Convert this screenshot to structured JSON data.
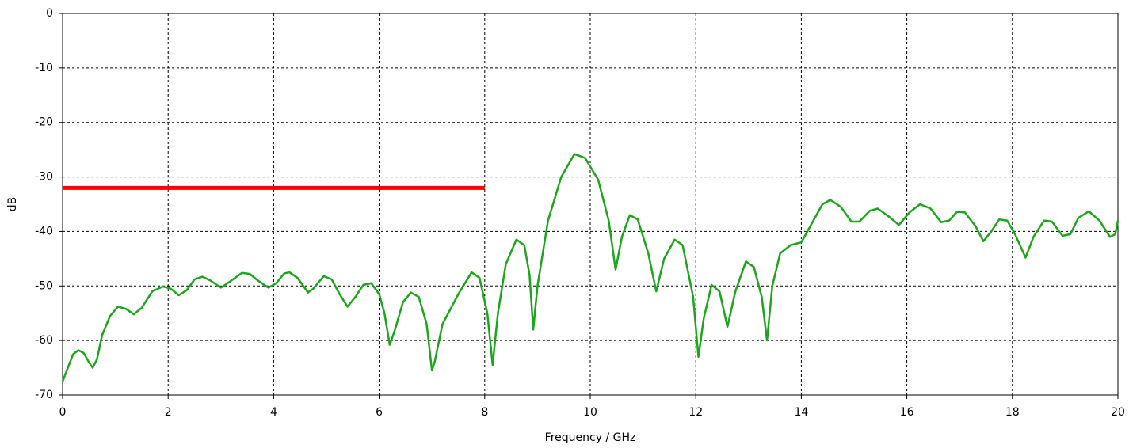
{
  "chart_data": {
    "type": "line",
    "xlabel": "Frequency / GHz",
    "ylabel": "dB",
    "xlim": [
      0,
      20
    ],
    "xticks": [
      0,
      2,
      4,
      6,
      8,
      10,
      12,
      14,
      16,
      18,
      20
    ],
    "ylim": [
      -70,
      0
    ],
    "yticks": [
      0,
      -10,
      -20,
      -30,
      -40,
      -50,
      -60,
      -70
    ],
    "grid": true,
    "series": [
      {
        "color": "#1aa81a",
        "x": [
          0,
          0.1,
          0.2,
          0.3,
          0.4,
          0.5,
          0.57,
          0.65,
          0.75,
          0.9,
          1.05,
          1.2,
          1.35,
          1.5,
          1.7,
          1.9,
          2.05,
          2.2,
          2.35,
          2.5,
          2.65,
          2.8,
          3.0,
          3.2,
          3.4,
          3.55,
          3.7,
          3.9,
          4.05,
          4.2,
          4.3,
          4.45,
          4.6,
          4.65,
          4.75,
          4.95,
          5.1,
          5.25,
          5.4,
          5.55,
          5.7,
          5.85,
          6.0,
          6.1,
          6.2,
          6.3,
          6.45,
          6.6,
          6.75,
          6.9,
          7.0,
          7.05,
          7.2,
          7.5,
          7.75,
          7.9,
          8.05,
          8.15,
          8.25,
          8.4,
          8.6,
          8.75,
          8.85,
          8.92,
          9.0,
          9.2,
          9.45,
          9.7,
          9.9,
          10.15,
          10.35,
          10.48,
          10.6,
          10.75,
          10.9,
          11.1,
          11.25,
          11.4,
          11.6,
          11.75,
          11.95,
          12.05,
          12.15,
          12.3,
          12.45,
          12.6,
          12.75,
          12.95,
          13.1,
          13.25,
          13.35,
          13.45,
          13.6,
          13.8,
          14.0,
          14.2,
          14.4,
          14.55,
          14.75,
          14.95,
          15.1,
          15.3,
          15.45,
          15.65,
          15.85,
          16.05,
          16.25,
          16.45,
          16.65,
          16.8,
          16.95,
          17.1,
          17.3,
          17.45,
          17.6,
          17.75,
          17.9,
          18.05,
          18.25,
          18.4,
          18.6,
          18.75,
          18.95,
          19.1,
          19.25,
          19.45,
          19.65,
          19.85,
          19.95,
          20
        ],
        "values": [
          -67.5,
          -65,
          -62.5,
          -61.8,
          -62.3,
          -64,
          -65,
          -63.5,
          -59,
          -55.5,
          -53.8,
          -54.2,
          -55.2,
          -54,
          -51,
          -50.1,
          -50.5,
          -51.7,
          -50.8,
          -48.8,
          -48.3,
          -49,
          -50.3,
          -49,
          -47.6,
          -47.8,
          -49,
          -50.3,
          -49.5,
          -47.7,
          -47.5,
          -48.5,
          -50.5,
          -51.2,
          -50.5,
          -48.2,
          -48.8,
          -51.5,
          -53.8,
          -52,
          -49.8,
          -49.5,
          -51.5,
          -55,
          -60.8,
          -58,
          -53,
          -51.2,
          -52,
          -57,
          -65.5,
          -64,
          -57,
          -51.5,
          -47.5,
          -48.5,
          -55,
          -64.5,
          -55,
          -46,
          -41.5,
          -42.5,
          -48,
          -58,
          -50,
          -38,
          -30,
          -25.8,
          -26.5,
          -30.5,
          -38,
          -47,
          -41,
          -37,
          -37.8,
          -44,
          -51,
          -45,
          -41.5,
          -42.5,
          -52,
          -63,
          -56,
          -49.8,
          -51,
          -57.5,
          -51,
          -45.5,
          -46.5,
          -52,
          -60,
          -50,
          -44,
          -42.5,
          -42,
          -38.5,
          -35,
          -34.2,
          -35.5,
          -38.2,
          -38.2,
          -36.2,
          -35.8,
          -37.2,
          -38.8,
          -36.5,
          -35,
          -35.8,
          -38.3,
          -38,
          -36.4,
          -36.5,
          -39,
          -41.8,
          -40,
          -37.8,
          -38,
          -40.5,
          -44.8,
          -41,
          -38,
          -38.2,
          -40.8,
          -40.5,
          -37.5,
          -36.3,
          -38,
          -41,
          -40.5,
          -38
        ]
      },
      {
        "color": "#ff0000",
        "x": [
          0,
          8
        ],
        "values": [
          -32,
          -32
        ]
      }
    ]
  }
}
